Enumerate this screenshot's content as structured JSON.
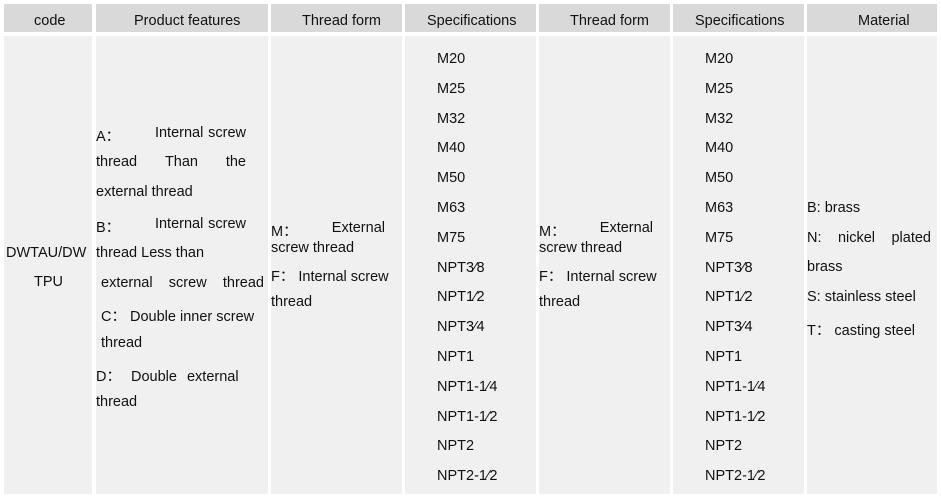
{
  "headers": [
    "code",
    "Product features",
    "Thread form",
    "Specifications",
    "Thread form",
    "Specifications",
    "Material"
  ],
  "code": [
    "DWTAU/DW",
    "TPU"
  ],
  "features": {
    "a": [
      "A：",
      "Internal",
      "screw"
    ],
    "a2": [
      "thread",
      "Than",
      "the"
    ],
    "a3": "external thread",
    "b": [
      "B：",
      "Internal",
      "screw"
    ],
    "b2": "thread Less than",
    "b3": [
      "external",
      "screw",
      "thread"
    ],
    "c": "C： Double inner screw",
    "c2": "thread",
    "d": "D： Double external",
    "d2": "thread"
  },
  "thread_form": {
    "m": [
      "M：",
      "External"
    ],
    "m2": "screw thread",
    "f": "F： Internal screw",
    "f2": "thread"
  },
  "specifications": [
    "M20",
    "M25",
    "M32",
    "M40",
    "M50",
    "M63",
    "M75",
    "NPT3⁄8",
    "NPT1⁄2",
    "NPT3⁄4",
    "NPT1",
    "NPT1-1⁄4",
    "NPT1-1⁄2",
    "NPT2",
    "NPT2-1⁄2"
  ],
  "material": {
    "b": "B: brass",
    "n": [
      "N:",
      "nickel",
      "plated"
    ],
    "n2": "brass",
    "s": "S: stainless steel",
    "t": "T： casting steel"
  }
}
